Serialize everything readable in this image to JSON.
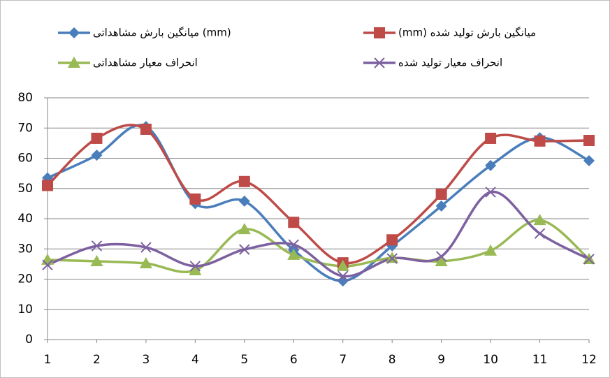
{
  "chart_data": {
    "type": "line",
    "categories": [
      1,
      2,
      3,
      4,
      5,
      6,
      7,
      8,
      9,
      10,
      11,
      12
    ],
    "series": [
      {
        "name": "میانگین بارش مشاهداتی (mm)",
        "color": "#4a7ebb",
        "marker": "diamond",
        "values": [
          53.5,
          61,
          70.5,
          45,
          45.8,
          29.6,
          19.4,
          31,
          44.2,
          57.6,
          66.8,
          59.2
        ]
      },
      {
        "name": "(mm) میانگین بارش تولید شده",
        "color": "#be4b48",
        "marker": "square",
        "values": [
          51,
          66.6,
          69.6,
          46.5,
          52.3,
          38.8,
          25.4,
          33,
          48.1,
          66.6,
          65.7,
          65.9
        ]
      },
      {
        "name": "انحراف معیار مشاهداتی",
        "color": "#98b954",
        "marker": "triangle",
        "values": [
          26.4,
          25.9,
          25.2,
          22.9,
          36.5,
          28,
          24.3,
          27,
          25.9,
          29.4,
          39.5,
          26.6
        ]
      },
      {
        "name": "انحراف معیار تولید شده",
        "color": "#7d60a0",
        "marker": "x",
        "values": [
          24.7,
          31,
          30.5,
          24.3,
          29.8,
          31.4,
          21,
          26.8,
          27.5,
          48.8,
          35.1,
          26.6
        ]
      }
    ],
    "ylim": [
      0,
      80
    ],
    "yticks": [
      0,
      10,
      20,
      30,
      40,
      50,
      60,
      70,
      80
    ],
    "grid": true,
    "smooth": true
  }
}
